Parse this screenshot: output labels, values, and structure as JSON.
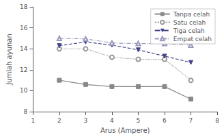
{
  "chart_data": {
    "type": "line",
    "x": [
      2,
      3,
      4,
      5,
      6,
      7
    ],
    "xlabel": "Arus (Ampere)",
    "ylabel": "Jumlah ayunan",
    "xlim": [
      1,
      8
    ],
    "ylim": [
      8,
      18
    ],
    "xticks": [
      1,
      2,
      3,
      4,
      5,
      6,
      7,
      8
    ],
    "yticks": [
      8,
      10,
      12,
      14,
      16,
      18
    ],
    "grid": false,
    "legend": "upper right",
    "series": [
      {
        "name": "Tanpa celah",
        "color": "#888888",
        "marker": "square",
        "line_style": "solid",
        "values": [
          11.0,
          10.6,
          10.4,
          10.4,
          10.4,
          9.2
        ]
      },
      {
        "name": "Satu celah",
        "color": "#999999",
        "marker": "open_circle",
        "line_style": "dotted",
        "values": [
          14.0,
          14.0,
          13.2,
          13.0,
          13.0,
          11.0
        ]
      },
      {
        "name": "Tiga celah",
        "color": "#444488",
        "marker": "triangle_down",
        "line_style": "dashed",
        "values": [
          14.3,
          14.65,
          14.35,
          13.9,
          13.3,
          12.7
        ]
      },
      {
        "name": "Empat celah",
        "color": "#9999bb",
        "marker": "open_triangle_up",
        "line_style": "dashdot",
        "values": [
          15.0,
          14.95,
          14.55,
          14.5,
          14.5,
          14.35
        ]
      }
    ]
  }
}
